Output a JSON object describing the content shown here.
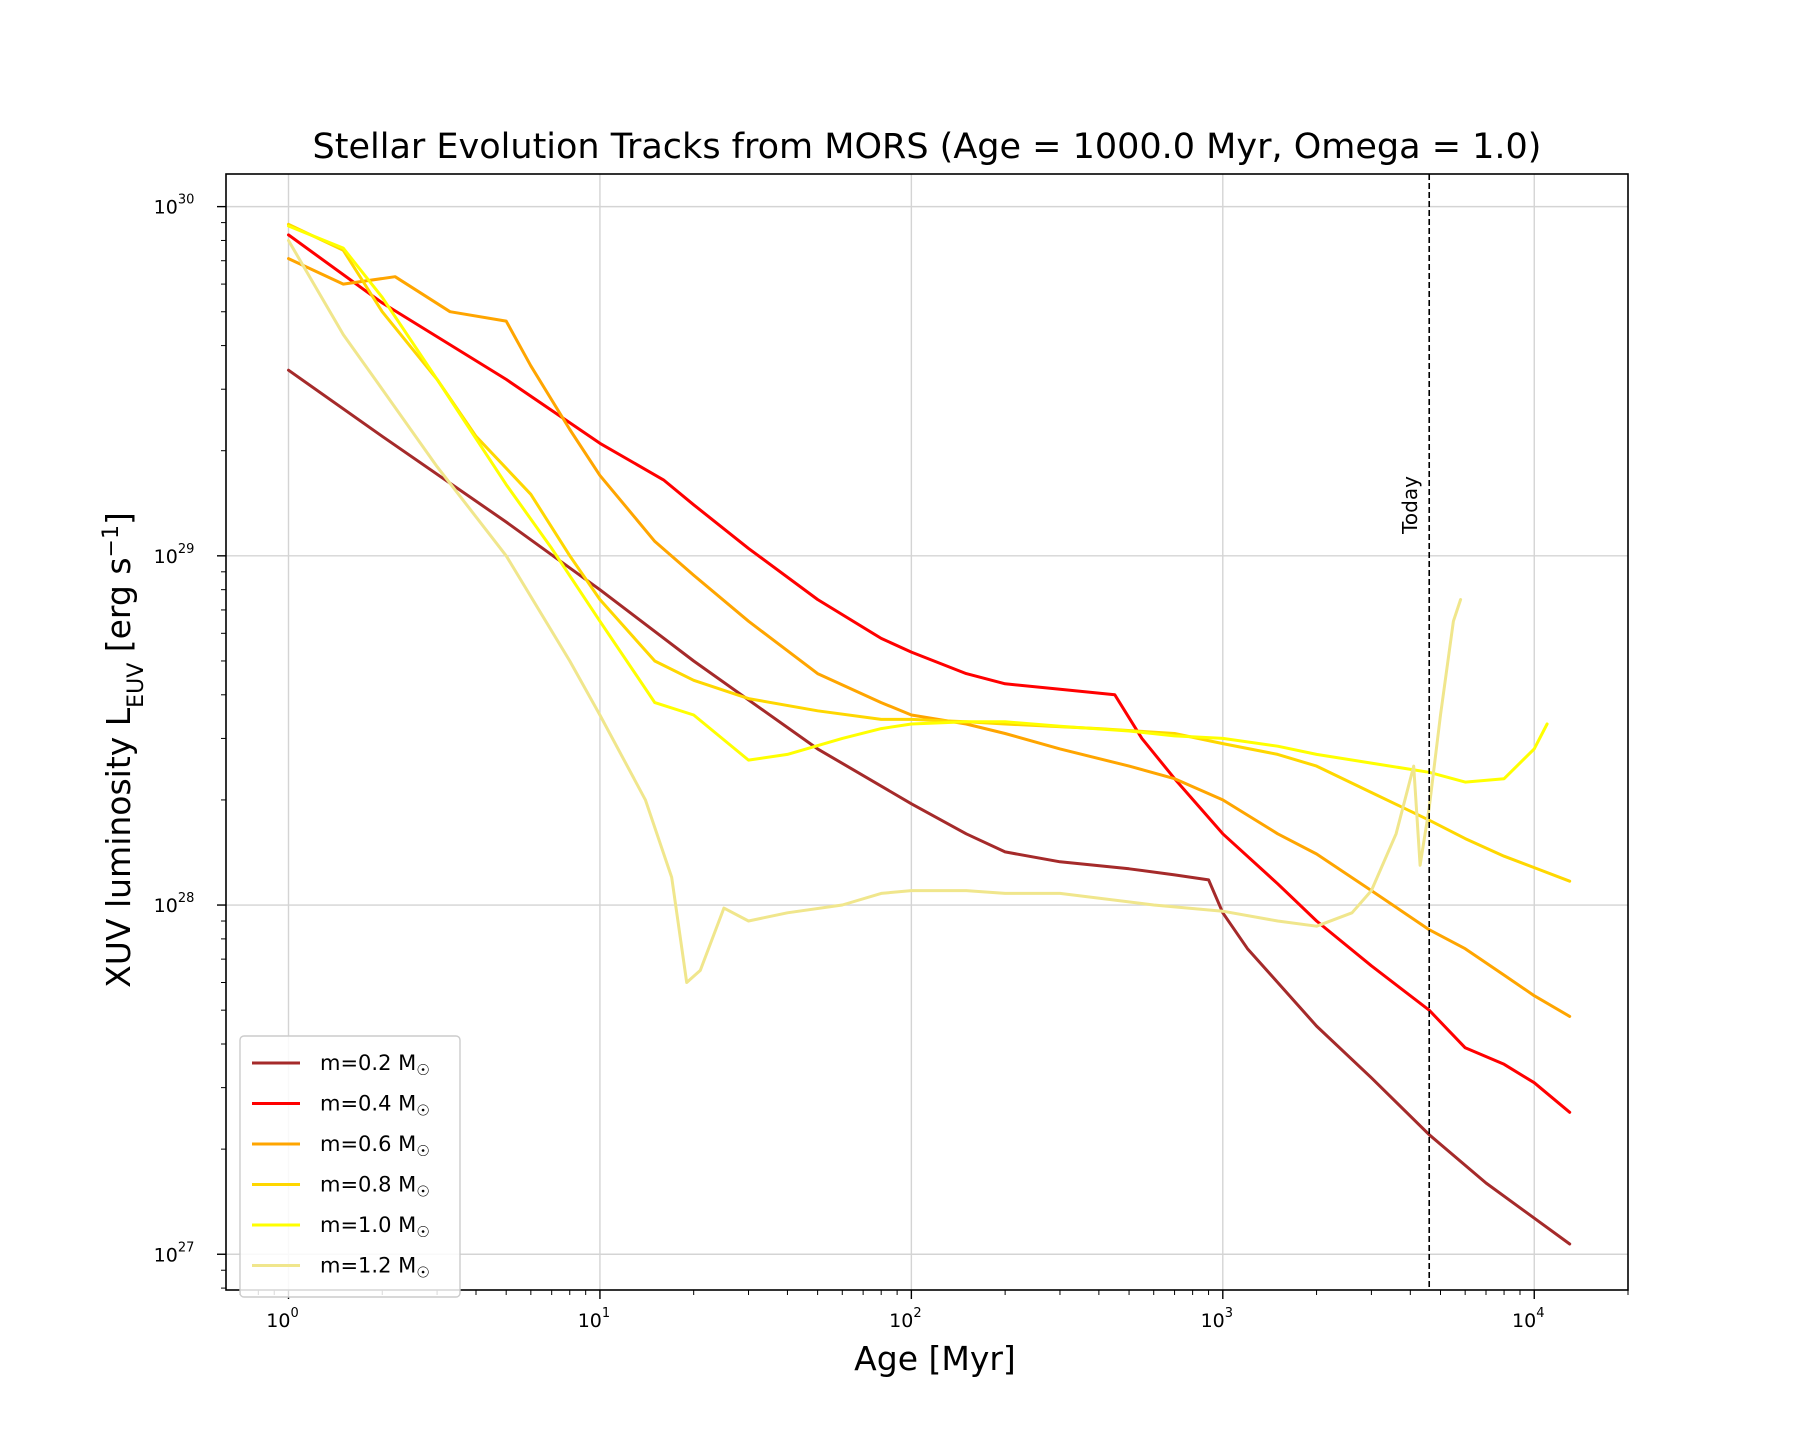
{
  "chart_data": {
    "type": "line",
    "title": "Stellar Evolution Tracks from MORS (Age = 1000.0 Myr, Omega = 1.0)",
    "xlabel": "Age [Myr]",
    "ylabel": "XUV luminosity L",
    "ylabel_sub": "EUV",
    "ylabel_unit_pre": " [erg s",
    "ylabel_unit_sup": "−1",
    "ylabel_unit_post": "]",
    "xscale": "log",
    "yscale": "log",
    "xlim": [
      0.63,
      20000
    ],
    "ylim": [
      7.9e+26,
      1.24e+30
    ],
    "grid": true,
    "legend_position": "lower-left",
    "x_ticks": [
      {
        "value": 1,
        "base": "10",
        "exp": "0"
      },
      {
        "value": 10,
        "base": "10",
        "exp": "1"
      },
      {
        "value": 100,
        "base": "10",
        "exp": "2"
      },
      {
        "value": 1000,
        "base": "10",
        "exp": "3"
      },
      {
        "value": 10000,
        "base": "10",
        "exp": "4"
      }
    ],
    "y_ticks": [
      {
        "value": 1e+27,
        "base": "10",
        "exp": "27"
      },
      {
        "value": 1e+28,
        "base": "10",
        "exp": "28"
      },
      {
        "value": 1e+29,
        "base": "10",
        "exp": "29"
      },
      {
        "value": 1e+30,
        "base": "10",
        "exp": "30"
      }
    ],
    "annotation": {
      "label": "Today",
      "x": 4600,
      "style": "dashed vertical line"
    },
    "series": [
      {
        "name": "m=0.2 M",
        "name_sub": "☉",
        "color": "#a52a2a",
        "points": [
          [
            1,
            3.4e+29
          ],
          [
            2,
            2.2e+29
          ],
          [
            5,
            1.25e+29
          ],
          [
            10,
            8e+28
          ],
          [
            20,
            5e+28
          ],
          [
            50,
            2.8e+28
          ],
          [
            100,
            1.95e+28
          ],
          [
            150,
            1.6e+28
          ],
          [
            200,
            1.42e+28
          ],
          [
            300,
            1.33e+28
          ],
          [
            500,
            1.27e+28
          ],
          [
            700,
            1.22e+28
          ],
          [
            900,
            1.18e+28
          ],
          [
            1000,
            9.5e+27
          ],
          [
            1200,
            7.5e+27
          ],
          [
            1500,
            6e+27
          ],
          [
            2000,
            4.5e+27
          ],
          [
            3000,
            3.2e+27
          ],
          [
            4600,
            2.2e+27
          ],
          [
            7000,
            1.6e+27
          ],
          [
            13000,
            1.07e+27
          ]
        ]
      },
      {
        "name": "m=0.4 M",
        "name_sub": "☉",
        "color": "#ff0000",
        "points": [
          [
            1,
            8.3e+29
          ],
          [
            2,
            5.3e+29
          ],
          [
            5,
            3.2e+29
          ],
          [
            10,
            2.1e+29
          ],
          [
            16,
            1.65e+29
          ],
          [
            20,
            1.4e+29
          ],
          [
            30,
            1.05e+29
          ],
          [
            50,
            7.5e+28
          ],
          [
            80,
            5.8e+28
          ],
          [
            100,
            5.3e+28
          ],
          [
            150,
            4.6e+28
          ],
          [
            200,
            4.3e+28
          ],
          [
            300,
            4.15e+28
          ],
          [
            450,
            4e+28
          ],
          [
            550,
            3e+28
          ],
          [
            700,
            2.3e+28
          ],
          [
            1000,
            1.6e+28
          ],
          [
            1500,
            1.15e+28
          ],
          [
            2000,
            9e+27
          ],
          [
            3000,
            6.7e+27
          ],
          [
            4600,
            5e+27
          ],
          [
            6000,
            3.9e+27
          ],
          [
            8000,
            3.5e+27
          ],
          [
            10000,
            3.1e+27
          ],
          [
            13000,
            2.55e+27
          ]
        ]
      },
      {
        "name": "m=0.6 M",
        "name_sub": "☉",
        "color": "#ffa500",
        "points": [
          [
            1,
            7.1e+29
          ],
          [
            1.5,
            6e+29
          ],
          [
            2.2,
            6.3e+29
          ],
          [
            3.3,
            5e+29
          ],
          [
            5,
            4.7e+29
          ],
          [
            6,
            3.5e+29
          ],
          [
            8,
            2.3e+29
          ],
          [
            10,
            1.7e+29
          ],
          [
            15,
            1.1e+29
          ],
          [
            20,
            8.8e+28
          ],
          [
            30,
            6.5e+28
          ],
          [
            50,
            4.6e+28
          ],
          [
            80,
            3.8e+28
          ],
          [
            100,
            3.5e+28
          ],
          [
            150,
            3.3e+28
          ],
          [
            200,
            3.1e+28
          ],
          [
            300,
            2.8e+28
          ],
          [
            500,
            2.5e+28
          ],
          [
            700,
            2.3e+28
          ],
          [
            1000,
            2e+28
          ],
          [
            1500,
            1.6e+28
          ],
          [
            2000,
            1.4e+28
          ],
          [
            3000,
            1.1e+28
          ],
          [
            4600,
            8.5e+27
          ],
          [
            6000,
            7.5e+27
          ],
          [
            8000,
            6.3e+27
          ],
          [
            10000,
            5.5e+27
          ],
          [
            13000,
            4.8e+27
          ]
        ]
      },
      {
        "name": "m=0.8 M",
        "name_sub": "☉",
        "color": "#ffd700",
        "points": [
          [
            1,
            8.9e+29
          ],
          [
            1.5,
            7.5e+29
          ],
          [
            2,
            5e+29
          ],
          [
            3,
            3.2e+29
          ],
          [
            4,
            2.2e+29
          ],
          [
            6,
            1.5e+29
          ],
          [
            8,
            1e+29
          ],
          [
            10,
            7.5e+28
          ],
          [
            15,
            5e+28
          ],
          [
            20,
            4.4e+28
          ],
          [
            30,
            3.9e+28
          ],
          [
            50,
            3.6e+28
          ],
          [
            80,
            3.4e+28
          ],
          [
            100,
            3.4e+28
          ],
          [
            150,
            3.35e+28
          ],
          [
            200,
            3.3e+28
          ],
          [
            400,
            3.2e+28
          ],
          [
            700,
            3.1e+28
          ],
          [
            1000,
            2.9e+28
          ],
          [
            1500,
            2.7e+28
          ],
          [
            2000,
            2.5e+28
          ],
          [
            3000,
            2.1e+28
          ],
          [
            4600,
            1.75e+28
          ],
          [
            6000,
            1.55e+28
          ],
          [
            8000,
            1.38e+28
          ],
          [
            10000,
            1.28e+28
          ],
          [
            13000,
            1.17e+28
          ]
        ]
      },
      {
        "name": "m=1.0 M",
        "name_sub": "☉",
        "color": "#ffff00",
        "points": [
          [
            1,
            8.8e+29
          ],
          [
            1.5,
            7.6e+29
          ],
          [
            2,
            5.5e+29
          ],
          [
            3,
            3.2e+29
          ],
          [
            5,
            1.6e+29
          ],
          [
            7,
            1.05e+29
          ],
          [
            10,
            6.5e+28
          ],
          [
            15,
            3.8e+28
          ],
          [
            20,
            3.5e+28
          ],
          [
            30,
            2.6e+28
          ],
          [
            40,
            2.7e+28
          ],
          [
            60,
            3e+28
          ],
          [
            80,
            3.2e+28
          ],
          [
            100,
            3.3e+28
          ],
          [
            150,
            3.35e+28
          ],
          [
            200,
            3.35e+28
          ],
          [
            300,
            3.25e+28
          ],
          [
            500,
            3.15e+28
          ],
          [
            700,
            3.05e+28
          ],
          [
            1000,
            3e+28
          ],
          [
            1500,
            2.85e+28
          ],
          [
            2000,
            2.7e+28
          ],
          [
            3000,
            2.55e+28
          ],
          [
            4600,
            2.4e+28
          ],
          [
            6000,
            2.25e+28
          ],
          [
            8000,
            2.3e+28
          ],
          [
            10000,
            2.8e+28
          ],
          [
            11000,
            3.3e+28
          ]
        ]
      },
      {
        "name": "m=1.2 M",
        "name_sub": "☉",
        "color": "#f0e68c",
        "points": [
          [
            1,
            8e+29
          ],
          [
            1.5,
            4.3e+29
          ],
          [
            2,
            3e+29
          ],
          [
            3,
            1.8e+29
          ],
          [
            5,
            1e+29
          ],
          [
            8,
            5e+28
          ],
          [
            10,
            3.5e+28
          ],
          [
            14,
            2e+28
          ],
          [
            17,
            1.2e+28
          ],
          [
            19,
            6e+27
          ],
          [
            21,
            6.5e+27
          ],
          [
            25,
            9.8e+27
          ],
          [
            30,
            9e+27
          ],
          [
            40,
            9.5e+27
          ],
          [
            60,
            1e+28
          ],
          [
            80,
            1.08e+28
          ],
          [
            100,
            1.1e+28
          ],
          [
            150,
            1.1e+28
          ],
          [
            200,
            1.08e+28
          ],
          [
            300,
            1.08e+28
          ],
          [
            600,
            1e+28
          ],
          [
            1000,
            9.6e+27
          ],
          [
            1500,
            9e+27
          ],
          [
            2000,
            8.7e+27
          ],
          [
            2600,
            9.5e+27
          ],
          [
            3000,
            1.1e+28
          ],
          [
            3600,
            1.6e+28
          ],
          [
            4100,
            2.5e+28
          ],
          [
            4300,
            1.3e+28
          ],
          [
            4600,
            1.9e+28
          ],
          [
            5000,
            3.5e+28
          ],
          [
            5500,
            6.5e+28
          ],
          [
            5800,
            7.5e+28
          ]
        ]
      }
    ]
  }
}
